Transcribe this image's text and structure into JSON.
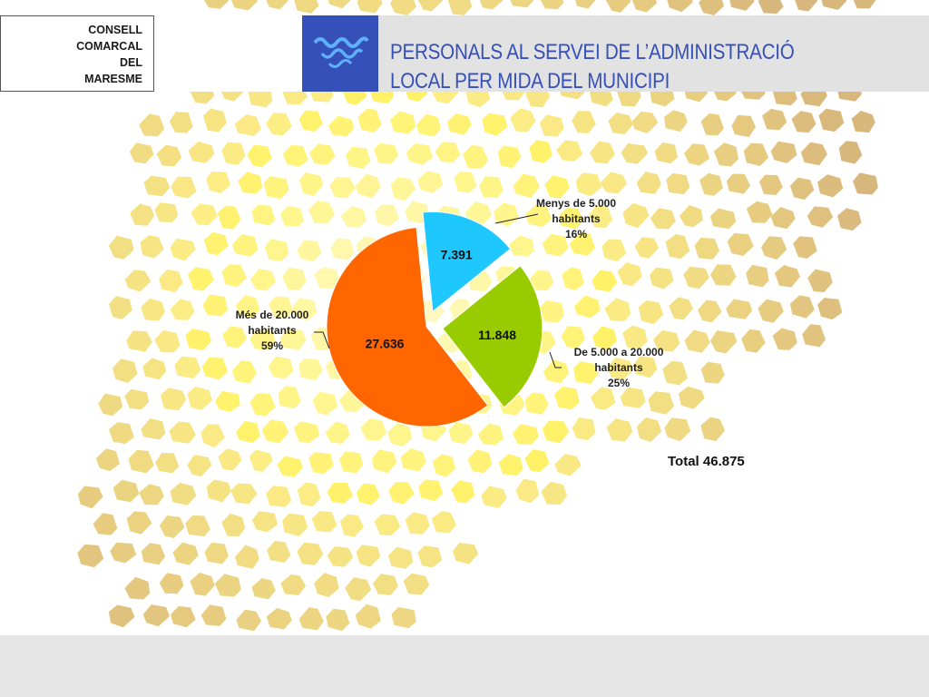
{
  "organization": {
    "lines": [
      "CONSELL",
      "COMARCAL",
      "DEL",
      "MARESME"
    ]
  },
  "title": {
    "line1": "PERSONALS AL SERVEI DE L’ADMINISTRACIÓ",
    "line2": "LOCAL PER MIDA DEL MUNICIPI"
  },
  "colors": {
    "title": "#3550b8",
    "logo_bg": "#3550b8",
    "slice_small": "#1ec8ff",
    "slice_medium": "#99cc00",
    "slice_large": "#ff6600"
  },
  "chart_data": {
    "type": "pie",
    "exploded": true,
    "series": [
      {
        "values": [
          7391,
          11848,
          27636
        ],
        "value_labels": [
          "7.391",
          "11.848",
          "27.636"
        ],
        "categories": [
          [
            "Menys de 5.000",
            "habitants",
            "16%"
          ],
          [
            "De 5.000 a 20.000",
            "habitants",
            "25%"
          ],
          [
            "Més de 20.000",
            "habitants",
            "59%"
          ]
        ],
        "percentages": [
          16,
          25,
          59
        ]
      }
    ],
    "total_label": "Total 46.875"
  }
}
